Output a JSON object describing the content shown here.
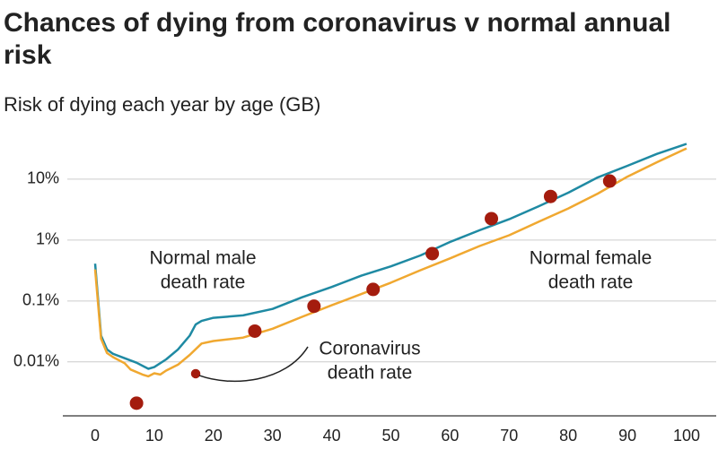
{
  "chart_data": {
    "type": "line",
    "title": "Chances of dying from coronavirus v normal annual risk",
    "subtitle": "Risk of dying each year by age (GB)",
    "log_y": true,
    "grid": true,
    "xlim": [
      0,
      100
    ],
    "xticks": [
      0,
      10,
      20,
      30,
      40,
      50,
      60,
      70,
      80,
      90,
      100
    ],
    "ylim": [
      0.0013,
      40
    ],
    "yticks": [
      {
        "value": 0.01,
        "label": "0.01%"
      },
      {
        "value": 0.1,
        "label": "0.1%"
      },
      {
        "value": 1,
        "label": "1%"
      },
      {
        "value": 10,
        "label": "10%"
      }
    ],
    "series": [
      {
        "name": "Normal male death rate",
        "label_lines": [
          "Normal male",
          "death rate"
        ],
        "color": "#1f8aa3",
        "kind": "line",
        "x": [
          0,
          1,
          2,
          3,
          5,
          7,
          9,
          10,
          12,
          14,
          16,
          17,
          18,
          20,
          25,
          30,
          35,
          40,
          45,
          50,
          55,
          60,
          65,
          70,
          75,
          80,
          85,
          90,
          95,
          100
        ],
        "values": [
          0.41,
          0.027,
          0.016,
          0.0136,
          0.0115,
          0.0097,
          0.0077,
          0.0082,
          0.011,
          0.016,
          0.027,
          0.041,
          0.047,
          0.053,
          0.058,
          0.074,
          0.115,
          0.17,
          0.26,
          0.37,
          0.56,
          0.93,
          1.45,
          2.2,
          3.6,
          6.0,
          10.7,
          16.6,
          26,
          38
        ]
      },
      {
        "name": "Normal female death rate",
        "label_lines": [
          "Normal female",
          "death rate"
        ],
        "color": "#f0a830",
        "kind": "line",
        "x": [
          0,
          1,
          2,
          3,
          5,
          6,
          8,
          9,
          10,
          11,
          12,
          14,
          16,
          18,
          20,
          25,
          30,
          35,
          40,
          45,
          50,
          55,
          60,
          65,
          70,
          75,
          80,
          85,
          90,
          95,
          100
        ],
        "values": [
          0.33,
          0.024,
          0.014,
          0.012,
          0.0095,
          0.0075,
          0.0062,
          0.0058,
          0.0065,
          0.0062,
          0.0072,
          0.009,
          0.013,
          0.02,
          0.022,
          0.025,
          0.035,
          0.055,
          0.085,
          0.13,
          0.2,
          0.32,
          0.5,
          0.8,
          1.2,
          2.0,
          3.3,
          5.8,
          11,
          19,
          32
        ]
      },
      {
        "name": "Coronavirus death rate",
        "label_lines": [
          "Coronavirus",
          "death rate"
        ],
        "color": "#a41c0e",
        "kind": "scatter",
        "x": [
          7,
          17,
          27,
          37,
          47,
          57,
          67,
          77,
          87
        ],
        "values": [
          0.0021,
          0.0064,
          0.032,
          0.082,
          0.155,
          0.6,
          2.25,
          5.2,
          9.3
        ]
      }
    ]
  }
}
